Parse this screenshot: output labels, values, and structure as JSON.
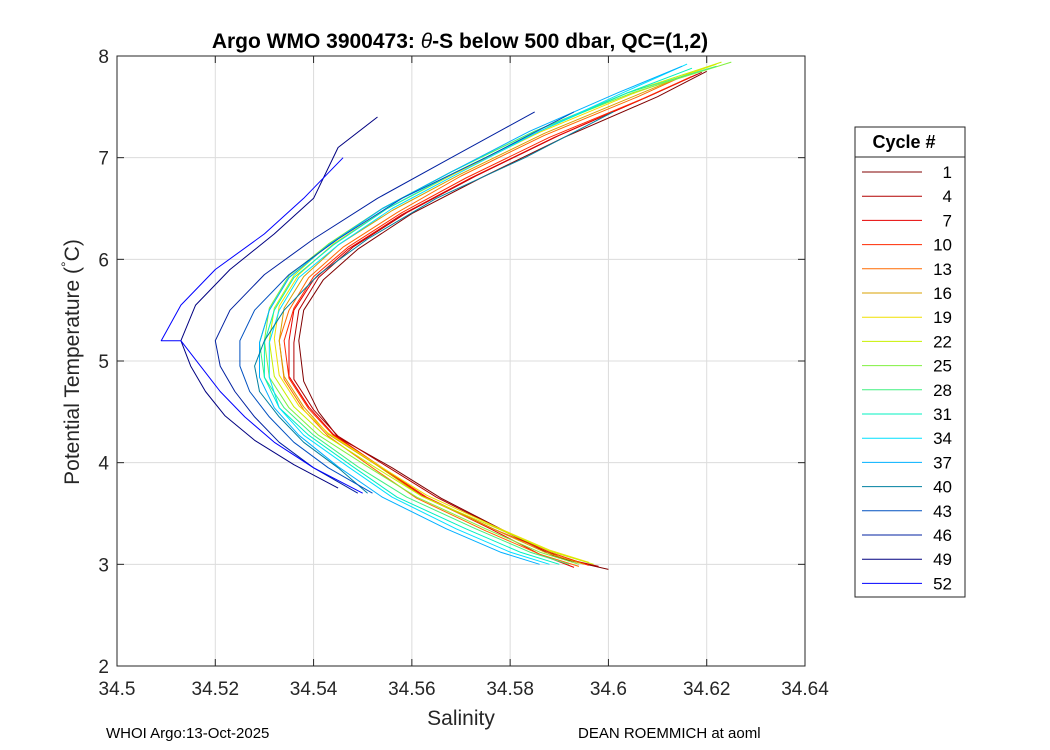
{
  "chart_data": {
    "type": "line",
    "title_parts": [
      "Argo WMO 3900473: ",
      "θ",
      "-S below 500 dbar,  QC=(1,2)"
    ],
    "xlabel": "Salinity",
    "ylabel": "Potential Temperature (°C)",
    "ylabel_parts": [
      "Potential Temperature (",
      "°",
      "C)"
    ],
    "xlim": [
      34.5,
      34.64
    ],
    "ylim": [
      2,
      8
    ],
    "xticks": [
      34.5,
      34.52,
      34.54,
      34.56,
      34.58,
      34.6,
      34.62,
      34.64
    ],
    "xtick_labels": [
      "34.5",
      "34.52",
      "34.54",
      "34.56",
      "34.58",
      "34.6",
      "34.62",
      "34.64"
    ],
    "yticks": [
      2,
      3,
      4,
      5,
      6,
      7,
      8
    ],
    "ytick_labels": [
      "2",
      "3",
      "4",
      "5",
      "6",
      "7",
      "8"
    ],
    "grid": true,
    "legend_title": "Cycle #",
    "legend_position": "outside-right",
    "legend": [
      {
        "label": "1",
        "color": "#800000"
      },
      {
        "label": "4",
        "color": "#b20000"
      },
      {
        "label": "7",
        "color": "#e60000"
      },
      {
        "label": "10",
        "color": "#ff2a00"
      },
      {
        "label": "13",
        "color": "#ff6a00"
      },
      {
        "label": "16",
        "color": "#d9a000"
      },
      {
        "label": "19",
        "color": "#f0e000"
      },
      {
        "label": "22",
        "color": "#c8f000"
      },
      {
        "label": "25",
        "color": "#80f040"
      },
      {
        "label": "28",
        "color": "#40f080"
      },
      {
        "label": "31",
        "color": "#00f0c0"
      },
      {
        "label": "34",
        "color": "#00e0ff"
      },
      {
        "label": "37",
        "color": "#00b0ff"
      },
      {
        "label": "40",
        "color": "#0080a0"
      },
      {
        "label": "43",
        "color": "#0050c0"
      },
      {
        "label": "46",
        "color": "#0020a0"
      },
      {
        "label": "49",
        "color": "#000080"
      },
      {
        "label": "52",
        "color": "#0000ff"
      }
    ],
    "series": [
      {
        "name": "1",
        "color": "#800000",
        "s": [
          34.6,
          34.591,
          34.58,
          34.566,
          34.556,
          34.545,
          34.541,
          34.538,
          34.537,
          34.538,
          34.542,
          34.549,
          34.56,
          34.574,
          34.591,
          34.61,
          34.62
        ],
        "t": [
          2.95,
          3.05,
          3.3,
          3.65,
          3.95,
          4.25,
          4.5,
          4.8,
          5.2,
          5.5,
          5.8,
          6.1,
          6.45,
          6.8,
          7.2,
          7.6,
          7.85
        ]
      },
      {
        "name": "4",
        "color": "#b20000",
        "s": [
          34.598,
          34.589,
          34.579,
          34.565,
          34.555,
          34.545,
          34.54,
          34.536,
          34.536,
          34.537,
          34.541,
          34.548,
          34.559,
          34.573,
          34.59,
          34.609,
          34.619
        ],
        "t": [
          2.98,
          3.08,
          3.32,
          3.66,
          3.96,
          4.26,
          4.52,
          4.82,
          5.18,
          5.5,
          5.82,
          6.12,
          6.46,
          6.82,
          7.22,
          7.62,
          7.84
        ]
      },
      {
        "name": "7",
        "color": "#e60000",
        "s": [
          34.593,
          34.586,
          34.576,
          34.562,
          34.553,
          34.544,
          34.539,
          34.535,
          34.535,
          34.536,
          34.54,
          34.547,
          34.558,
          34.572,
          34.589,
          34.608,
          34.618
        ],
        "t": [
          2.97,
          3.1,
          3.35,
          3.68,
          3.98,
          4.28,
          4.55,
          4.85,
          5.2,
          5.5,
          5.8,
          6.1,
          6.44,
          6.8,
          7.2,
          7.6,
          7.82
        ]
      },
      {
        "name": "10",
        "color": "#ff2a00",
        "s": [
          34.596,
          34.588,
          34.577,
          34.563,
          34.554,
          34.544,
          34.539,
          34.535,
          34.534,
          34.536,
          34.54,
          34.547,
          34.558,
          34.571,
          34.588,
          34.607,
          34.617
        ],
        "t": [
          2.99,
          3.12,
          3.34,
          3.66,
          3.95,
          4.27,
          4.53,
          4.83,
          5.2,
          5.52,
          5.83,
          6.12,
          6.46,
          6.8,
          7.2,
          7.58,
          7.8
        ]
      },
      {
        "name": "13",
        "color": "#ff6a00",
        "s": [
          34.594,
          34.586,
          34.575,
          34.561,
          34.552,
          34.543,
          34.538,
          34.534,
          34.533,
          34.535,
          34.539,
          34.546,
          34.557,
          34.57,
          34.587,
          34.606,
          34.616
        ],
        "t": [
          2.98,
          3.1,
          3.33,
          3.65,
          3.95,
          4.26,
          4.52,
          4.82,
          5.2,
          5.5,
          5.82,
          6.12,
          6.46,
          6.82,
          7.22,
          7.6,
          7.82
        ]
      },
      {
        "name": "16",
        "color": "#d9a000",
        "s": [
          34.595,
          34.587,
          34.576,
          34.562,
          34.553,
          34.543,
          34.538,
          34.534,
          34.533,
          34.534,
          34.538,
          34.545,
          34.556,
          34.57,
          34.587,
          34.606,
          34.617
        ],
        "t": [
          3.0,
          3.12,
          3.36,
          3.67,
          3.97,
          4.28,
          4.55,
          4.85,
          5.2,
          5.52,
          5.83,
          6.14,
          6.48,
          6.84,
          7.24,
          7.62,
          7.84
        ]
      },
      {
        "name": "19",
        "color": "#f0e000",
        "s": [
          34.596,
          34.588,
          34.577,
          34.563,
          34.553,
          34.543,
          34.537,
          34.533,
          34.532,
          34.533,
          34.537,
          34.544,
          34.555,
          34.569,
          34.586,
          34.605,
          34.622
        ],
        "t": [
          3.02,
          3.14,
          3.37,
          3.68,
          3.98,
          4.29,
          4.56,
          4.86,
          5.22,
          5.54,
          5.85,
          6.15,
          6.5,
          6.85,
          7.25,
          7.63,
          7.92
        ]
      },
      {
        "name": "22",
        "color": "#c8f000",
        "s": [
          34.597,
          34.588,
          34.577,
          34.562,
          34.552,
          34.542,
          34.536,
          34.532,
          34.531,
          34.532,
          34.536,
          34.543,
          34.554,
          34.568,
          34.585,
          34.604,
          34.623
        ],
        "t": [
          3.0,
          3.13,
          3.36,
          3.67,
          3.97,
          4.28,
          4.55,
          4.85,
          5.2,
          5.52,
          5.84,
          6.15,
          6.5,
          6.86,
          7.26,
          7.64,
          7.94
        ]
      },
      {
        "name": "25",
        "color": "#80f040",
        "s": [
          34.594,
          34.586,
          34.575,
          34.561,
          34.551,
          34.541,
          34.535,
          34.531,
          34.53,
          34.531,
          34.535,
          34.543,
          34.554,
          34.568,
          34.585,
          34.605,
          34.625
        ],
        "t": [
          3.0,
          3.12,
          3.35,
          3.66,
          3.96,
          4.27,
          4.54,
          4.84,
          5.2,
          5.52,
          5.84,
          6.15,
          6.5,
          6.86,
          7.26,
          7.64,
          7.94
        ]
      },
      {
        "name": "28",
        "color": "#40f080",
        "s": [
          34.592,
          34.584,
          34.573,
          34.559,
          34.549,
          34.54,
          34.534,
          34.53,
          34.529,
          34.531,
          34.535,
          34.543,
          34.554,
          34.568,
          34.585,
          34.604,
          34.622
        ],
        "t": [
          3.0,
          3.12,
          3.35,
          3.66,
          3.96,
          4.27,
          4.54,
          4.84,
          5.18,
          5.5,
          5.82,
          6.14,
          6.5,
          6.86,
          7.26,
          7.64,
          7.9
        ]
      },
      {
        "name": "31",
        "color": "#00f0c0",
        "s": [
          34.59,
          34.582,
          34.571,
          34.557,
          34.548,
          34.539,
          34.533,
          34.53,
          34.53,
          34.532,
          34.536,
          34.544,
          34.555,
          34.569,
          34.586,
          34.604,
          34.617
        ],
        "t": [
          3.0,
          3.12,
          3.35,
          3.66,
          3.96,
          4.27,
          4.54,
          4.84,
          5.18,
          5.5,
          5.82,
          6.14,
          6.5,
          6.86,
          7.26,
          7.64,
          7.88
        ]
      },
      {
        "name": "34",
        "color": "#00e0ff",
        "s": [
          34.588,
          34.58,
          34.569,
          34.556,
          34.547,
          34.538,
          34.533,
          34.531,
          34.531,
          34.533,
          34.537,
          34.545,
          34.556,
          34.57,
          34.586,
          34.603,
          34.616
        ],
        "t": [
          3.0,
          3.12,
          3.35,
          3.66,
          3.96,
          4.27,
          4.54,
          4.84,
          5.18,
          5.5,
          5.82,
          6.14,
          6.5,
          6.86,
          7.26,
          7.64,
          7.92
        ]
      },
      {
        "name": "37",
        "color": "#00b0ff",
        "s": [
          34.586,
          34.578,
          34.567,
          34.554,
          34.545,
          34.537,
          34.532,
          34.529,
          34.529,
          34.531,
          34.535,
          34.543,
          34.554,
          34.568,
          34.584,
          34.602,
          34.615
        ],
        "t": [
          3.0,
          3.12,
          3.35,
          3.66,
          3.96,
          4.27,
          4.54,
          4.84,
          5.18,
          5.5,
          5.82,
          6.14,
          6.5,
          6.86,
          7.26,
          7.64,
          7.9
        ]
      },
      {
        "name": "40",
        "color": "#0080a0",
        "s": [
          34.551,
          34.545,
          34.538,
          34.533,
          34.529,
          34.528,
          34.53,
          34.534,
          34.541,
          34.551,
          34.565,
          34.583,
          34.601
        ],
        "t": [
          3.7,
          3.95,
          4.2,
          4.45,
          4.7,
          4.95,
          5.2,
          5.5,
          5.85,
          6.2,
          6.6,
          7.0,
          7.45
        ]
      },
      {
        "name": "43",
        "color": "#0050c0",
        "s": [
          34.552,
          34.543,
          34.536,
          34.531,
          34.527,
          34.525,
          34.525,
          34.528,
          34.535,
          34.545,
          34.558,
          34.575,
          34.593
        ],
        "t": [
          3.7,
          3.95,
          4.2,
          4.45,
          4.7,
          4.95,
          5.2,
          5.5,
          5.85,
          6.2,
          6.6,
          7.0,
          7.45
        ]
      },
      {
        "name": "46",
        "color": "#0020a0",
        "s": [
          34.549,
          34.54,
          34.533,
          34.528,
          34.524,
          34.521,
          34.52,
          34.523,
          34.53,
          34.54,
          34.553,
          34.568,
          34.585
        ],
        "t": [
          3.7,
          3.95,
          4.2,
          4.45,
          4.7,
          4.95,
          5.2,
          5.5,
          5.85,
          6.2,
          6.6,
          7.0,
          7.45
        ]
      },
      {
        "name": "49",
        "color": "#000080",
        "s": [
          34.545,
          34.536,
          34.528,
          34.522,
          34.518,
          34.515,
          34.513,
          34.516,
          34.523,
          34.532,
          34.54,
          34.545,
          34.553
        ],
        "t": [
          3.75,
          3.98,
          4.22,
          4.46,
          4.7,
          4.95,
          5.2,
          5.55,
          5.9,
          6.25,
          6.6,
          7.1,
          7.4
        ]
      },
      {
        "name": "52",
        "color": "#0000ff",
        "s": [
          34.55,
          34.54,
          34.532,
          34.526,
          34.521,
          34.517,
          34.513,
          34.509,
          34.513,
          34.52,
          34.53,
          34.538,
          34.546
        ],
        "t": [
          3.7,
          3.95,
          4.2,
          4.45,
          4.7,
          4.95,
          5.2,
          5.2,
          5.55,
          5.9,
          6.25,
          6.6,
          7.0
        ]
      }
    ]
  },
  "footer": {
    "left": "WHOI Argo:13-Oct-2025",
    "right": "DEAN ROEMMICH at aoml"
  }
}
